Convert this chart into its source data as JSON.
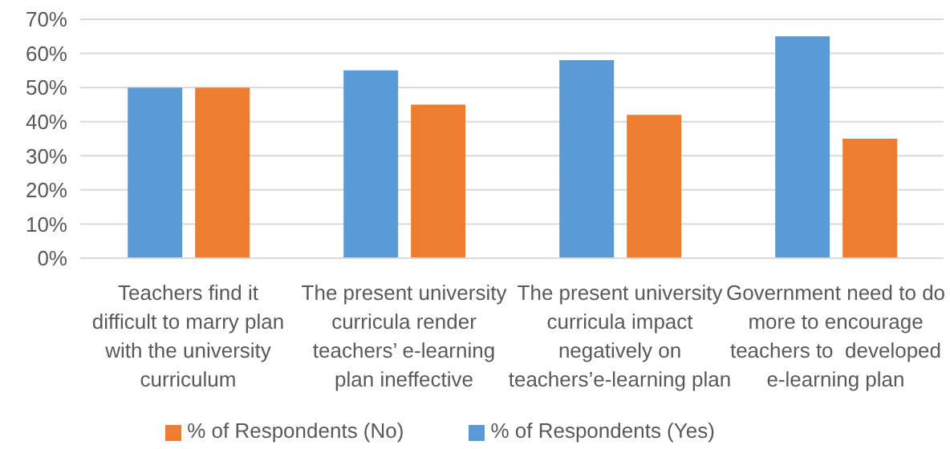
{
  "chart_data": {
    "type": "bar",
    "categories": [
      "Teachers find it difficult to marry plan with the university curriculum",
      "The present university curricula render teachers’ e-learning plan ineffective",
      "The present university curricula impact negatively on teachers’e-learning plan",
      "Government need to do more to encourage teachers to  developed e-learning plan"
    ],
    "series": [
      {
        "name": "% of Respondents (Yes)",
        "color": "#5b9bd5",
        "values": [
          50,
          55,
          58,
          65
        ]
      },
      {
        "name": "% of Respondents (No)",
        "color": "#ed7d31",
        "values": [
          50,
          45,
          42,
          35
        ]
      }
    ],
    "ylim": [
      0,
      70
    ],
    "yticks": [
      {
        "value": 0,
        "label": "0%"
      },
      {
        "value": 10,
        "label": "10%"
      },
      {
        "value": 20,
        "label": "20%"
      },
      {
        "value": 30,
        "label": "30%"
      },
      {
        "value": 40,
        "label": "40%"
      },
      {
        "value": 50,
        "label": "50%"
      },
      {
        "value": 60,
        "label": "60%"
      },
      {
        "value": 70,
        "label": "70%"
      }
    ],
    "grid": "y",
    "legend": "bottom"
  }
}
